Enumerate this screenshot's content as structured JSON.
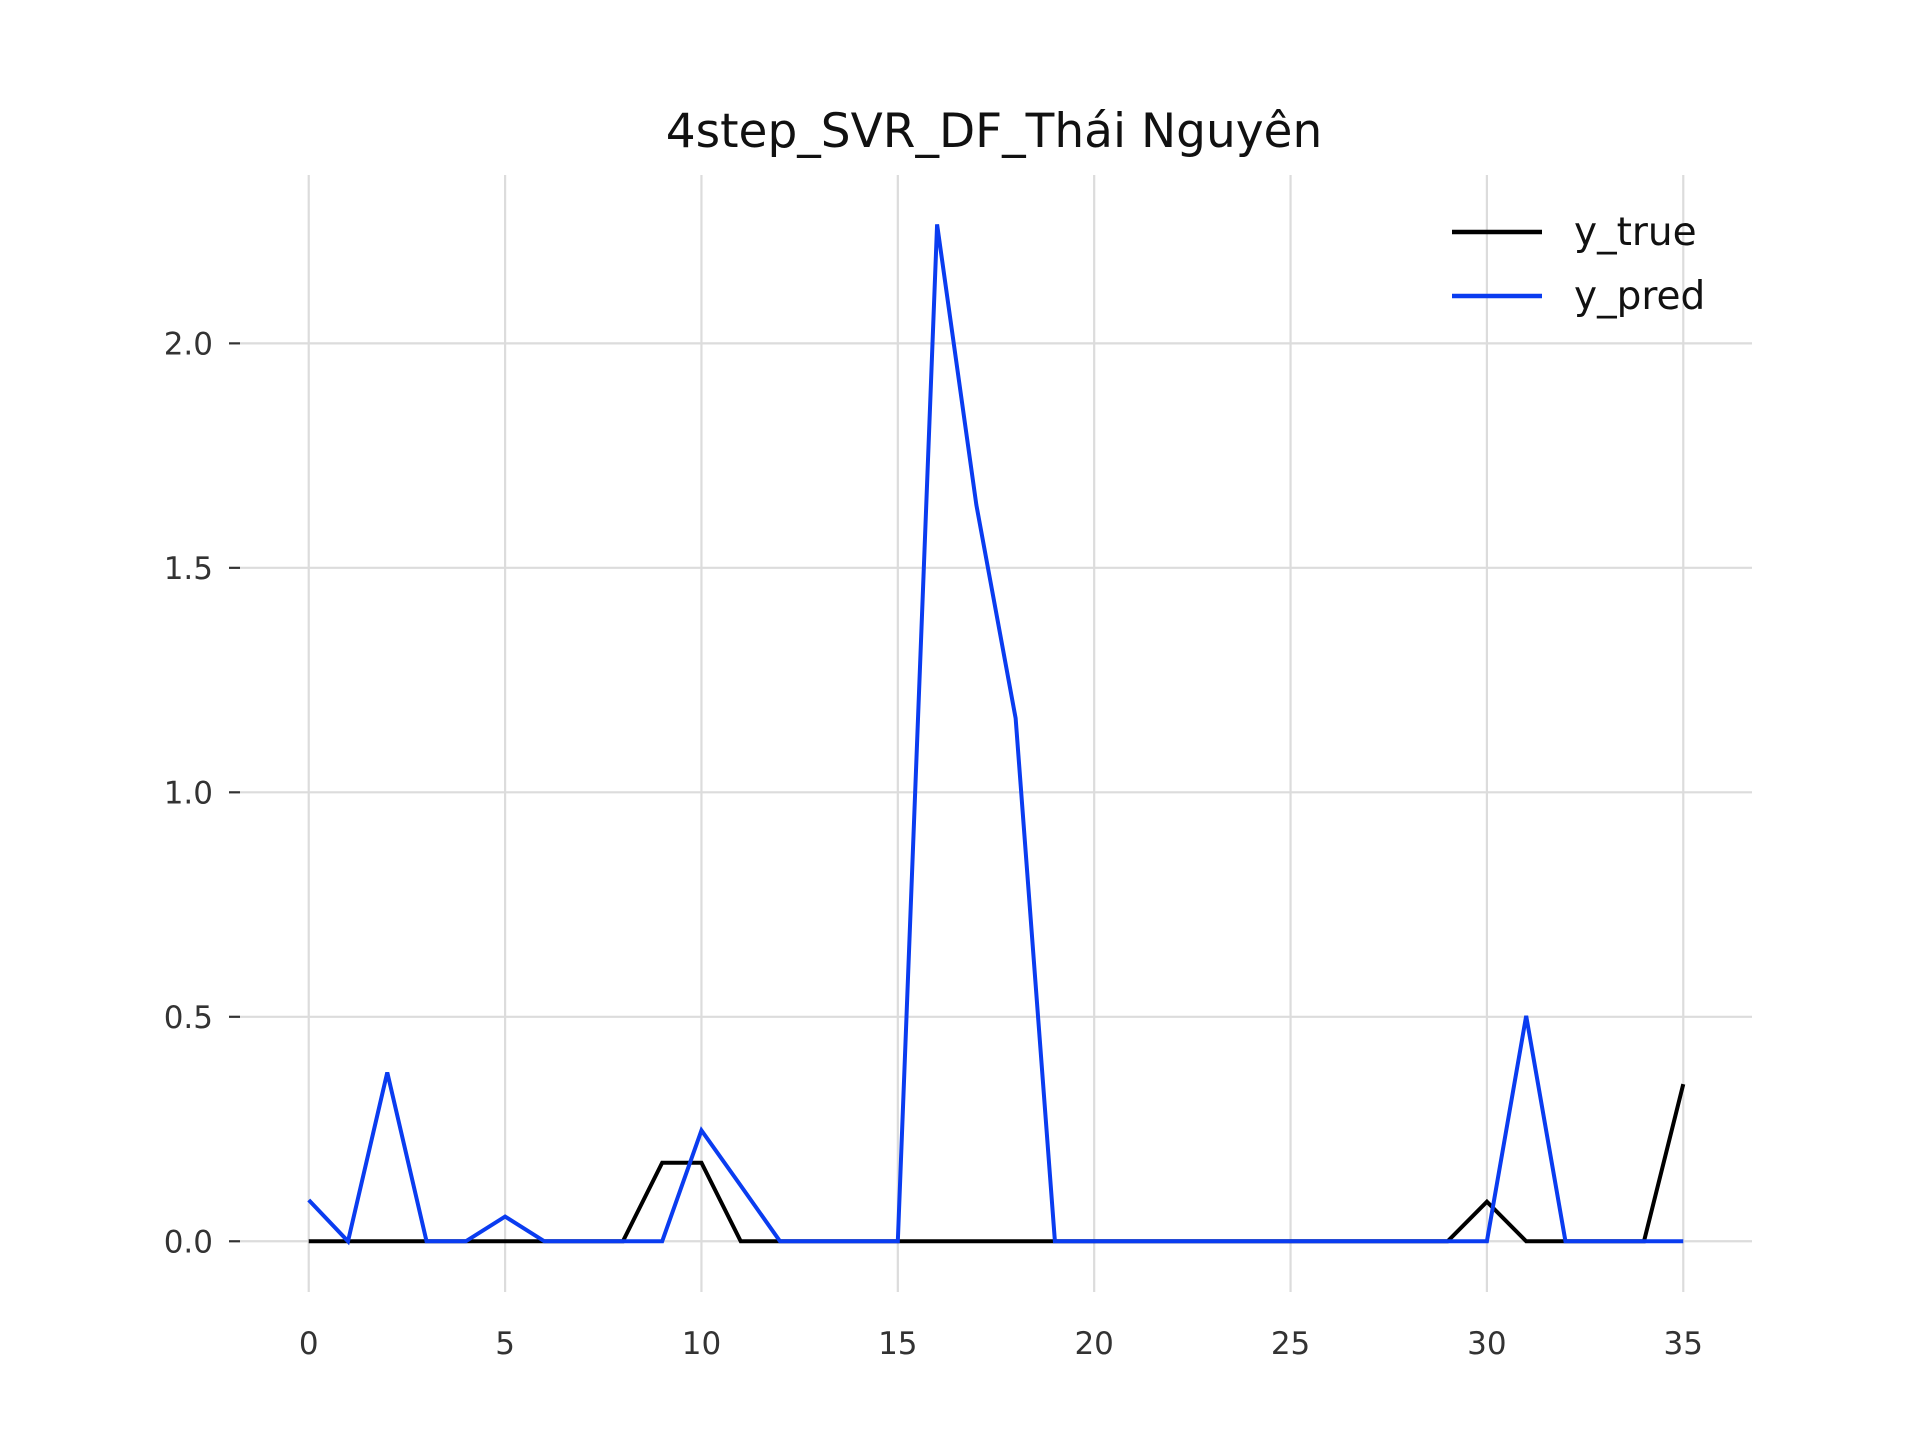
{
  "chart_data": {
    "type": "line",
    "title": "4step_SVR_DF_Thái Nguyên",
    "xlabel": "",
    "ylabel": "",
    "xlim": [
      -1.75,
      36.75
    ],
    "ylim": [
      -0.113,
      2.375
    ],
    "grid": true,
    "legend_position": "top-right",
    "x_ticks": [
      0,
      5,
      10,
      15,
      20,
      25,
      30,
      35
    ],
    "x_tick_labels": [
      "0",
      "5",
      "10",
      "15",
      "20",
      "25",
      "30",
      "35"
    ],
    "y_ticks": [
      0.0,
      0.5,
      1.0,
      1.5,
      2.0
    ],
    "y_tick_labels": [
      "0.0",
      "0.5",
      "1.0",
      "1.5",
      "2.0"
    ],
    "x": [
      0,
      1,
      2,
      3,
      4,
      5,
      6,
      7,
      8,
      9,
      10,
      11,
      12,
      13,
      14,
      15,
      16,
      17,
      18,
      19,
      20,
      21,
      22,
      23,
      24,
      25,
      26,
      27,
      28,
      29,
      30,
      31,
      32,
      33,
      34,
      35
    ],
    "series": [
      {
        "name": "y_true",
        "color": "#000000",
        "values": [
          0,
          0,
          0,
          0,
          0,
          0,
          0,
          0,
          0,
          0.175,
          0.175,
          0,
          0,
          0,
          0,
          0,
          0,
          0,
          0,
          0,
          0,
          0,
          0,
          0,
          0,
          0,
          0,
          0,
          0,
          0,
          0.088,
          0,
          0,
          0,
          0,
          0.35
        ]
      },
      {
        "name": "y_pred",
        "color": "#0a3cf0",
        "values": [
          0.092,
          0,
          0.376,
          0,
          0,
          0.055,
          0,
          0,
          0,
          0,
          0.247,
          0.124,
          0,
          0,
          0,
          0,
          2.265,
          1.64,
          1.165,
          0,
          0,
          0,
          0,
          0,
          0,
          0,
          0,
          0,
          0,
          0,
          0,
          0.502,
          0,
          0,
          0,
          0
        ]
      }
    ]
  }
}
